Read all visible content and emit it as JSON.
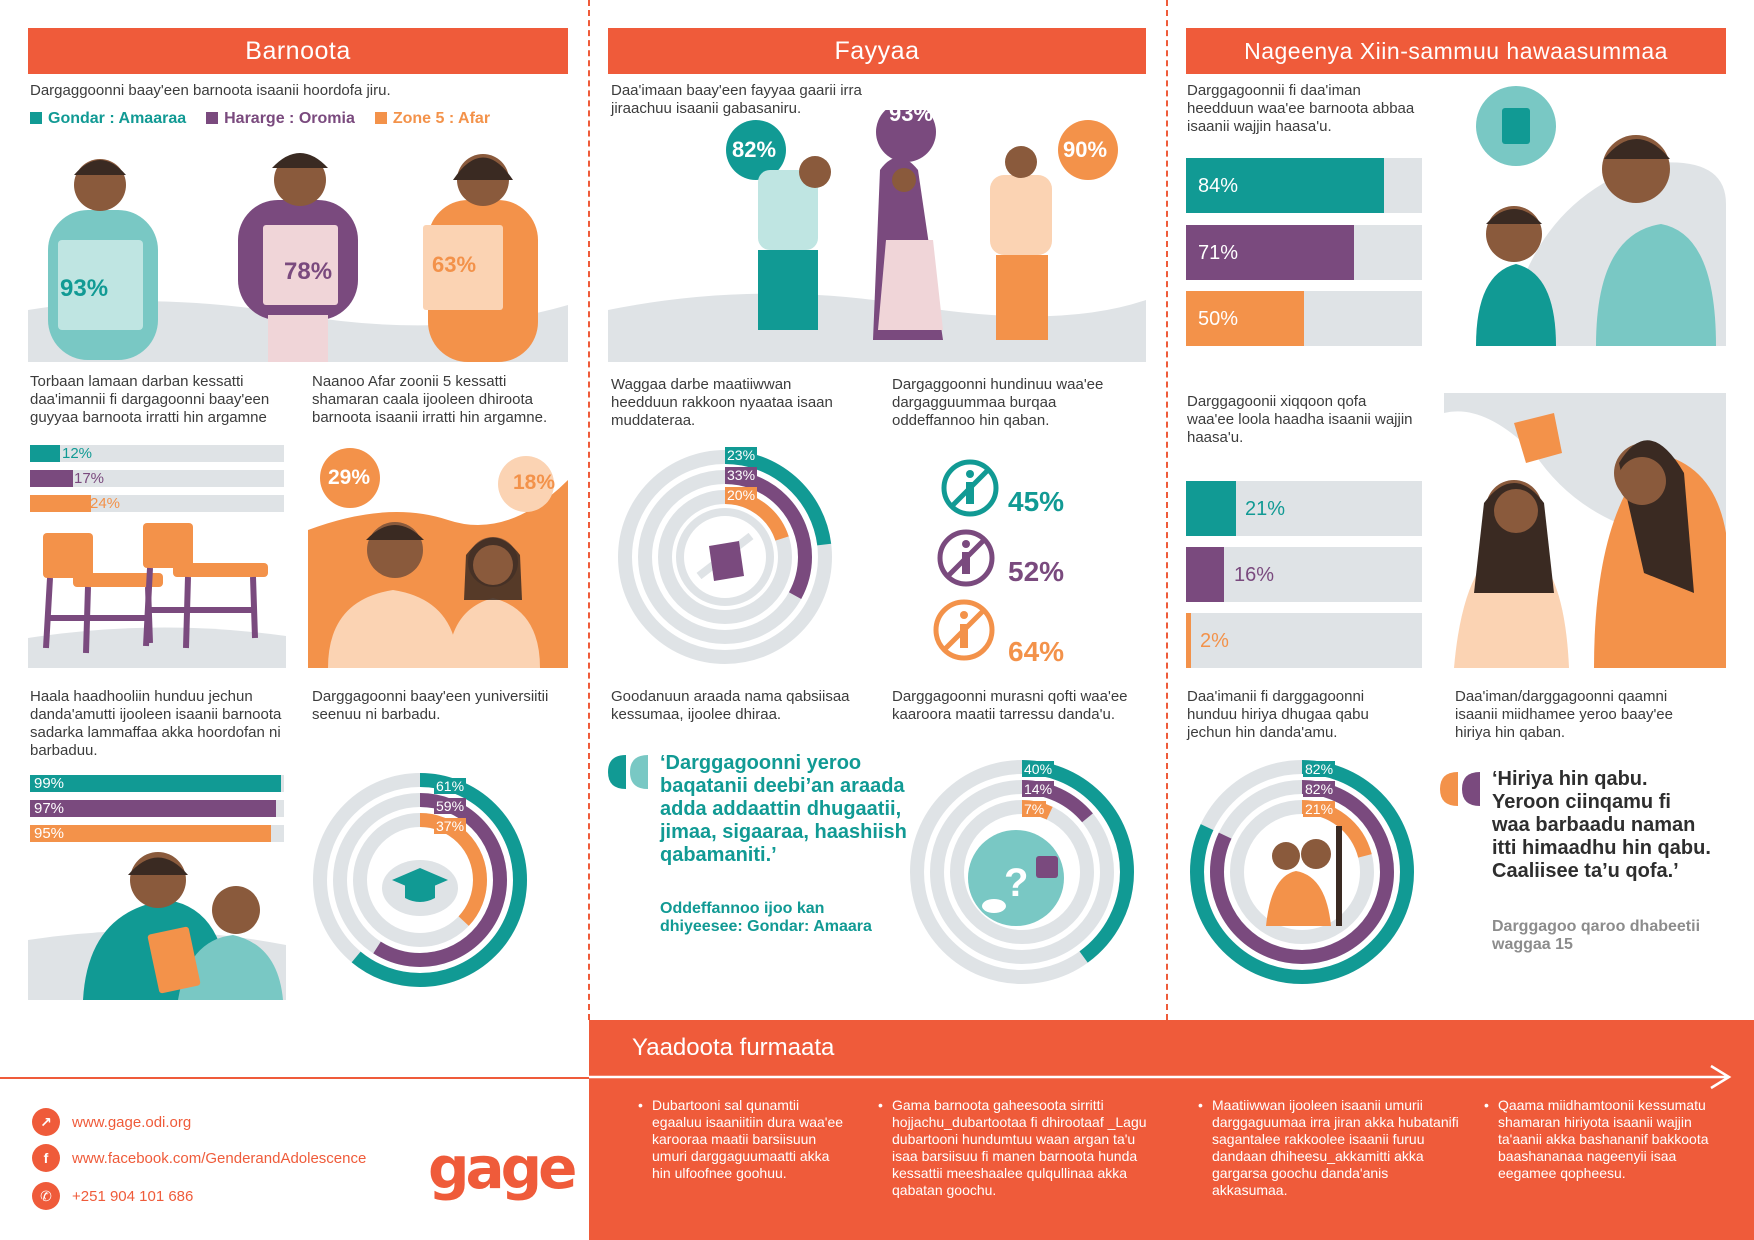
{
  "sections": {
    "barnoota": {
      "title": "Barnoota",
      "intro": "Dargaggoonni baay'een barnoota isaanii hoordofa jiru.",
      "legend": [
        {
          "label": "Gondar : Amaaraa",
          "color": "#119a94"
        },
        {
          "label": "Hararge : Oromia",
          "color": "#7a4a7e"
        },
        {
          "label": "Zone 5 : Afar",
          "color": "#f3924a"
        }
      ],
      "figures": [
        "93%",
        "78%",
        "63%"
      ],
      "stat1": {
        "caption": "Torbaan lamaan darban kessatti daa'imannii fi dargagoonni baay'een guyyaa barnoota irratti hin argamne",
        "values": [
          12,
          17,
          24
        ],
        "labels": [
          "12%",
          "17%",
          "24%"
        ]
      },
      "stat2": {
        "caption": "Naanoo Afar zoonii 5 kessatti shamaran caala ijooleen dhiroota barnoota isaanii irratti hin argamne.",
        "labels": [
          "29%",
          "18%"
        ]
      },
      "stat3": {
        "caption": "Haala haadhooliin hunduu jechun danda'amutti ijooleen isaanii barnoota sadarka lammaffaa akka hoordofan ni barbaduu.",
        "values": [
          99,
          97,
          95
        ],
        "labels": [
          "99%",
          "97%",
          "95%"
        ]
      },
      "stat4": {
        "caption": "Darggagoonni baay'een yuniversiitii seenuu ni barbadu.",
        "values": [
          61,
          59,
          37
        ],
        "labels": [
          "61%",
          "59%",
          "37%"
        ]
      }
    },
    "fayyaa": {
      "title": "Fayyaa",
      "intro": "Daa'imaan baay'een fayyaa gaarii irra jiraachuu isaanii gabasaniru.",
      "figures": [
        "82%",
        "93%",
        "90%"
      ],
      "stat1": {
        "caption": "Waggaa darbe maatiiwwan heedduun rakkoon nyaataa isaan muddateraa.",
        "values": [
          23,
          33,
          20
        ],
        "labels": [
          "23%",
          "33%",
          "20%"
        ]
      },
      "stat2": {
        "caption": "Dargaggoonni hundinuu waa'ee dargagguummaa burqaa oddeffannoo hin qaban.",
        "labels": [
          "45%",
          "52%",
          "64%"
        ]
      },
      "stat3": {
        "caption": "Goodanuun araada nama qabsiisaa kessumaa, ijoolee dhiraa.",
        "quote": "‘Darggagoonni yeroo baqatanii deebi’an araada adda addaattin dhugaatii, jimaa, sigaaraa, haashiish qabamaniti.’",
        "source": "Oddeffannoo ijoo kan dhiyeesee: Gondar: Amaara"
      },
      "stat4": {
        "caption": "Darggagoonni murasni qofti waa'ee kaaroora maatii tarressu danda'u.",
        "values": [
          40,
          14,
          7
        ],
        "labels": [
          "40%",
          "14%",
          "7%"
        ]
      }
    },
    "nageenya": {
      "title": "Nageenya Xiin-sammuu hawaasummaa",
      "stat1": {
        "caption": "Darggagoonnii fi daa'iman heedduun waa'ee barnoota abbaa isaanii wajjin haasa'u.",
        "values": [
          84,
          71,
          50
        ],
        "labels": [
          "84%",
          "71%",
          "50%"
        ]
      },
      "stat2": {
        "caption": "Darggagoonii xiqqoon qofa waa'ee loola haadha isaanii wajjin haasa'u.",
        "values": [
          21,
          16,
          2
        ],
        "labels": [
          "21%",
          "16%",
          "2%"
        ]
      },
      "stat3": {
        "caption": "Daa'imanii fi darggagoonni hunduu hiriya dhugaa qabu jechun hin danda'amu.",
        "values": [
          82,
          82,
          21
        ],
        "labels": [
          "82%",
          "82%",
          "21%"
        ]
      },
      "stat4": {
        "caption": "Daa'iman/darggagoonni qaamni isaanii miidhamee yeroo baay'ee hiriya hin qaban.",
        "quote": "‘Hiriya hin qabu. Yeroon ciinqamu fi waa barbaadu naman itti himaadhu hin qabu. Caaliisee ta’u qofa.’",
        "source": "Darggagoo qaroo dhabeetii waggaa 15"
      }
    }
  },
  "footer": {
    "title": "Yaadoota furmaata",
    "recommendations": [
      "Dubartooni sal qunamtii egaaluu isaaniitiin dura waa'ee karooraa maatii barsiisuun umuri darggaguumaatti akka hin ulfoofnee goohuu.",
      "Gama barnoota gaheesoota sirritti hojjachu_dubartootaa fi dhirootaaf _Lagu dubartooni hundumtuu waan argan ta'u isaa barsiisuu fi manen barnoota hunda kessattii meeshaalee qulqullinaa akka qabatan goochu.",
      "Maatiiwwan ijooleen isaanii umurii darggaguumaa irra jiran akka hubatanifi sagantalee rakkoolee isaanii furuu dandaan dhiheesu_akkamitti akka gargarsa goochu danda'anis akkasumaa.",
      "Qaama miidhamtoonii kessumatu shamaran hiriyota isaanii wajjin ta'aanii akka bashananif bakkoota baashananaa nageenyii isaa eegamee qopheesu."
    ],
    "contact": {
      "website": "www.gage.odi.org",
      "facebook": "www.facebook.com/GenderandAdolescence",
      "phone": "+251 904 101 686"
    },
    "logo": "gage"
  },
  "colors": {
    "accent": "#ef5b3a",
    "teal": "#119a94",
    "purple": "#7a4a7e",
    "orange": "#f3924a",
    "grey": "#dfe3e6"
  }
}
